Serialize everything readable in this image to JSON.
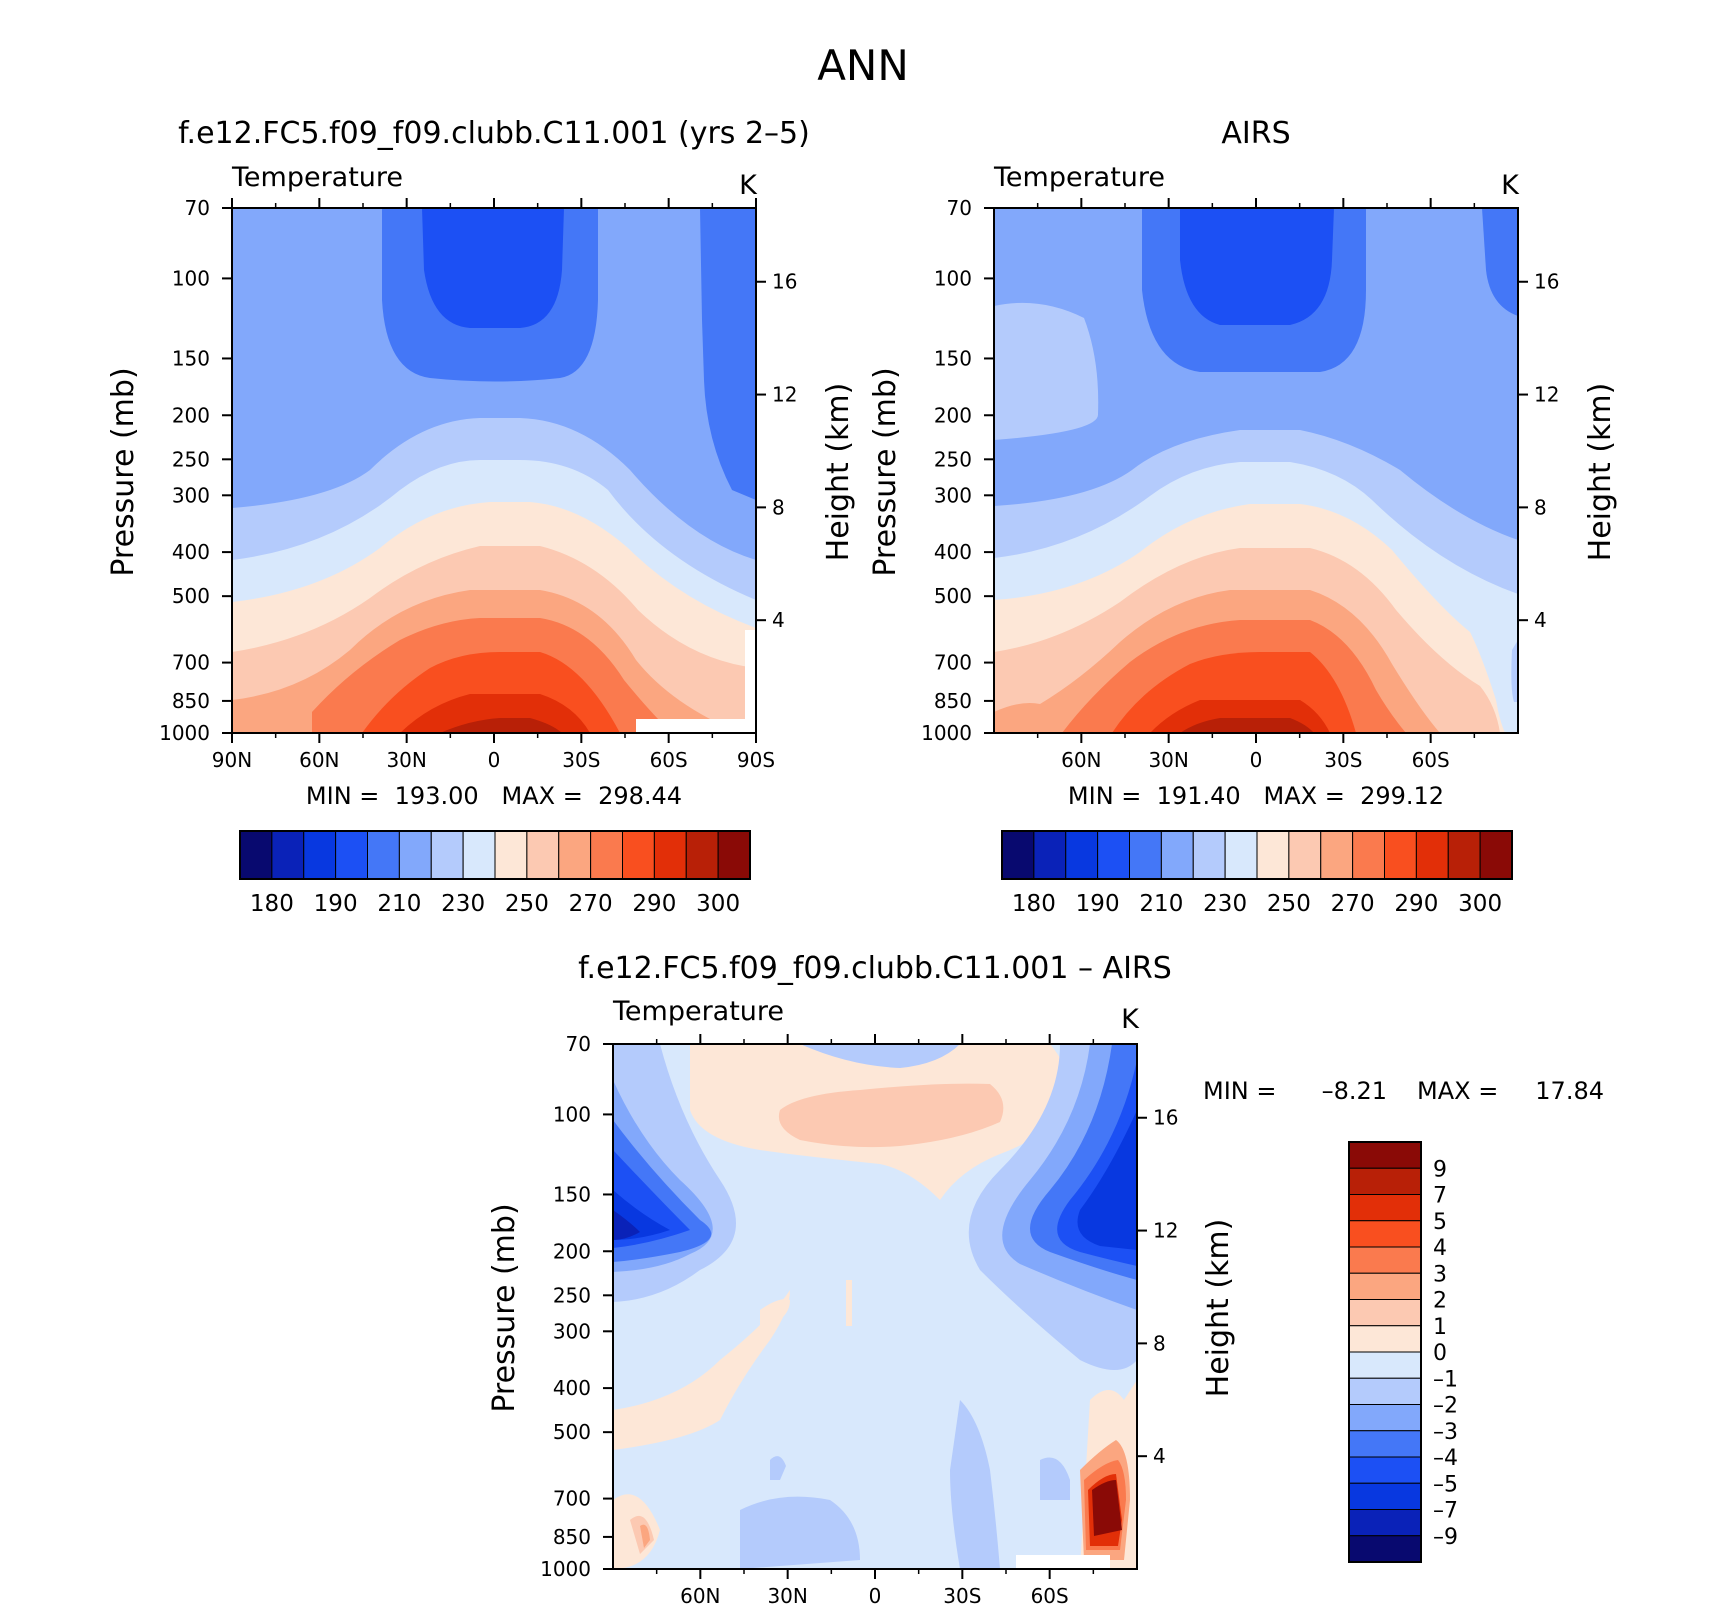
{
  "figure": {
    "title": "ANN"
  },
  "chart_data": [
    {
      "type": "heatmap",
      "title": "f.e12.FC5.f09_f09.clubb.C11.001 (yrs 2–5)",
      "variable": "Temperature",
      "units": "K",
      "ylabel": "Pressure (mb)",
      "ylabel_right": "Height (km)",
      "x_ticks": [
        "90N",
        "60N",
        "30N",
        "0",
        "30S",
        "60S",
        "90S"
      ],
      "y_ticks": [
        70,
        100,
        150,
        200,
        250,
        300,
        400,
        500,
        700,
        850,
        1000
      ],
      "height_ticks": [
        4,
        8,
        12,
        16
      ],
      "stats": "MIN =  193.00   MAX =  298.44",
      "min": 193.0,
      "max": 298.44,
      "colorbar_levels": [
        175,
        180,
        185,
        190,
        200,
        210,
        220,
        230,
        240,
        250,
        260,
        270,
        280,
        290,
        295,
        300
      ],
      "colorbar_labels": [
        "180",
        "190",
        "210",
        "230",
        "250",
        "270",
        "290",
        "300"
      ]
    },
    {
      "type": "heatmap",
      "title": "AIRS",
      "variable": "Temperature",
      "units": "K",
      "ylabel": "Pressure (mb)",
      "ylabel_right": "Height (km)",
      "x_ticks": [
        "60N",
        "30N",
        "0",
        "30S",
        "60S"
      ],
      "y_ticks": [
        70,
        100,
        150,
        200,
        250,
        300,
        400,
        500,
        700,
        850,
        1000
      ],
      "height_ticks": [
        4,
        8,
        12,
        16
      ],
      "stats": "MIN =  191.40   MAX =  299.12",
      "min": 191.4,
      "max": 299.12,
      "colorbar_levels": [
        175,
        180,
        185,
        190,
        200,
        210,
        220,
        230,
        240,
        250,
        260,
        270,
        280,
        290,
        295,
        300
      ],
      "colorbar_labels": [
        "180",
        "190",
        "210",
        "230",
        "250",
        "270",
        "290",
        "300"
      ]
    },
    {
      "type": "heatmap",
      "title": "f.e12.FC5.f09_f09.clubb.C11.001 – AIRS",
      "variable": "Temperature",
      "units": "K",
      "ylabel": "Pressure (mb)",
      "ylabel_right": "Height (km)",
      "x_ticks": [
        "60N",
        "30N",
        "0",
        "30S",
        "60S"
      ],
      "y_ticks": [
        70,
        100,
        150,
        200,
        250,
        300,
        400,
        500,
        700,
        850,
        1000
      ],
      "height_ticks": [
        4,
        8,
        12,
        16
      ],
      "stats_min_label": "MIN =",
      "stats_min_value": "–8.21",
      "stats_max_label": "MAX =",
      "stats_max_value": "17.84",
      "min": -8.21,
      "max": 17.84,
      "colorbar_labels": [
        "9",
        "7",
        "5",
        "4",
        "3",
        "2",
        "1",
        "0",
        "–1",
        "–2",
        "–3",
        "–4",
        "–5",
        "–7",
        "–9"
      ]
    }
  ],
  "colors": {
    "temperature_scale": [
      "#08096f",
      "#0a22b8",
      "#0838e0",
      "#1c50f4",
      "#4477f7",
      "#82a8fb",
      "#b4cbfc",
      "#d8e8fc",
      "#fde7d7",
      "#fcc9b2",
      "#fba680",
      "#fa7a4e",
      "#f94f1f",
      "#e22f08",
      "#b82007",
      "#8a0a06"
    ],
    "difference_scale": [
      "#8a0a06",
      "#b82007",
      "#e22f08",
      "#f94f1f",
      "#fa7a4e",
      "#fba680",
      "#fcc9b2",
      "#fde7d7",
      "#d8e8fc",
      "#b4cbfc",
      "#82a8fb",
      "#4477f7",
      "#1c50f4",
      "#0838e0",
      "#0a22b8",
      "#08096f"
    ]
  }
}
